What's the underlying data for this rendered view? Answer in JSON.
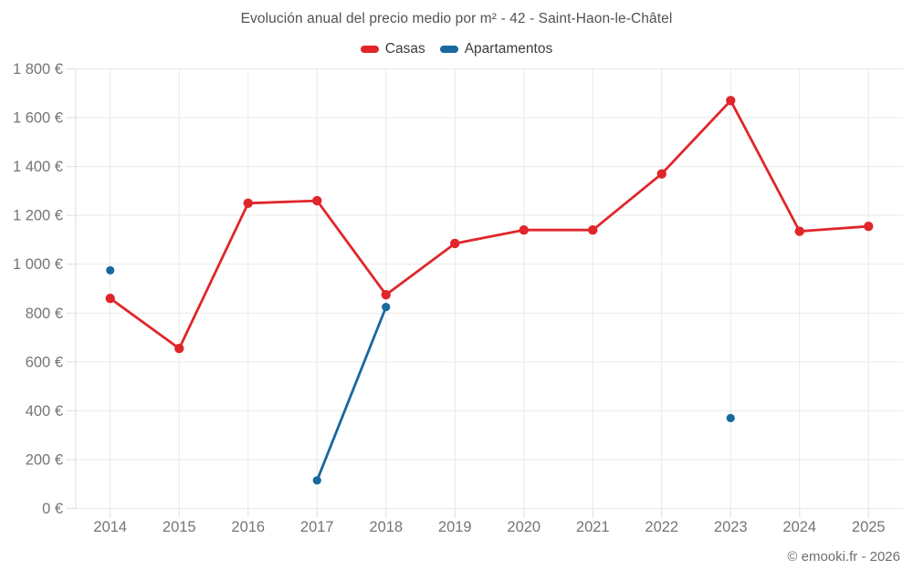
{
  "header": {
    "title": "Evolución anual del precio medio por m² - 42 - Saint-Haon-le-Châtel"
  },
  "footer": {
    "copyright": "© emooki.fr - 2026"
  },
  "colors": {
    "casas": "#e0262b",
    "apartamentos": "#17699e",
    "grid": "#e9e9e9",
    "axis": "#dddddd",
    "tick_text": "#757575",
    "title_text": "#525252",
    "legend_text": "#3d3d3d",
    "footer_text": "#6e6e6e"
  },
  "chart_data": {
    "type": "line",
    "title": "Evolución anual del precio medio por m² - 42 - Saint-Haon-le-Châtel",
    "x": [
      "2014",
      "2015",
      "2016",
      "2017",
      "2018",
      "2019",
      "2020",
      "2021",
      "2022",
      "2023",
      "2024",
      "2025"
    ],
    "series": [
      {
        "name": "Casas",
        "color": "#e0262b",
        "values": [
          860,
          655,
          1250,
          1260,
          875,
          1085,
          1140,
          1140,
          1370,
          1670,
          1135,
          1155
        ]
      },
      {
        "name": "Apartamentos",
        "color": "#17699e",
        "values": [
          975,
          null,
          null,
          115,
          825,
          null,
          null,
          null,
          null,
          370,
          null,
          null
        ]
      }
    ],
    "ylim": [
      0,
      1800
    ],
    "ytick_step": 200,
    "ytick_labels": [
      "0 €",
      "200 €",
      "400 €",
      "600 €",
      "800 €",
      "1 000 €",
      "1 200 €",
      "1 400 €",
      "1 600 €",
      "1 800 €"
    ],
    "currency_suffix": "€",
    "grid": true,
    "legend_position": "top"
  }
}
